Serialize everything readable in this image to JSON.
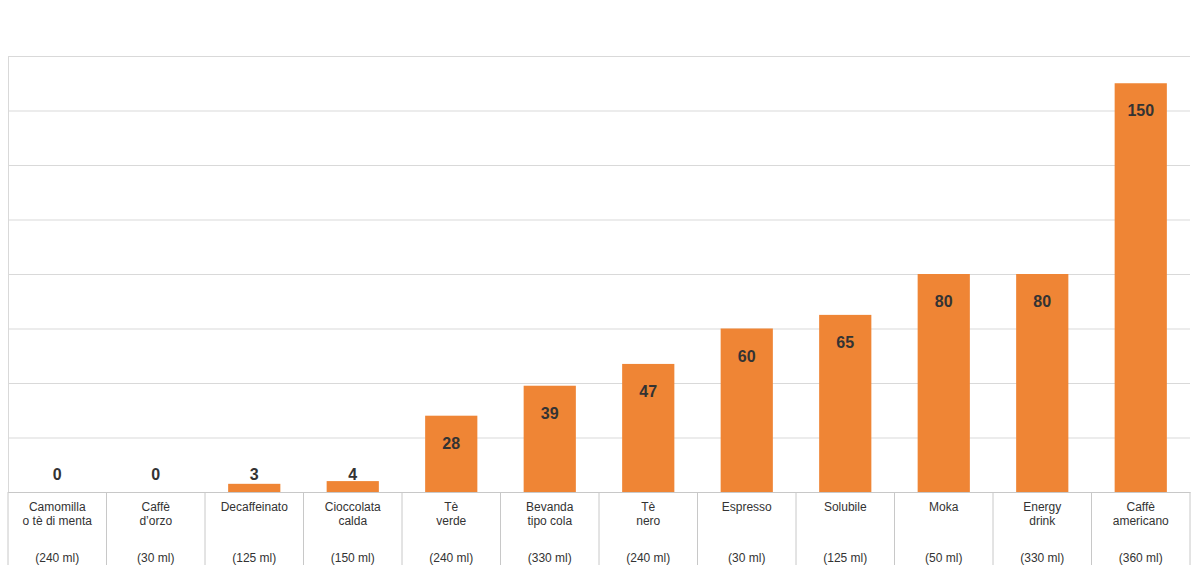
{
  "chart_data": {
    "type": "bar",
    "categories": [
      "Camomilla\no tè di menta\n(240 ml)",
      "Caffè\nd’orzo\n(30 ml)",
      "Decaffeinato\n(125 ml)",
      "Cioccolata\ncalda\n(150 ml)",
      "Tè\nverde\n(240 ml)",
      "Bevanda\ntipo cola\n(330 ml)",
      "Tè\nnero\n(240 ml)",
      "Espresso\n(30 ml)",
      "Solubile\n(125 ml)",
      "Moka\n(50 ml)",
      "Energy\ndrink\n(330 ml)",
      "Caffè\namericano\n(360 ml)"
    ],
    "values": [
      0,
      0,
      3,
      4,
      28,
      39,
      47,
      60,
      65,
      80,
      80,
      150
    ],
    "color": "#EF8535",
    "ylim": [
      0,
      160
    ],
    "yticks": [
      0,
      20,
      40,
      60,
      80,
      100,
      120,
      140,
      160
    ],
    "grid": true,
    "data_labels": true,
    "tick_labels": "x"
  }
}
